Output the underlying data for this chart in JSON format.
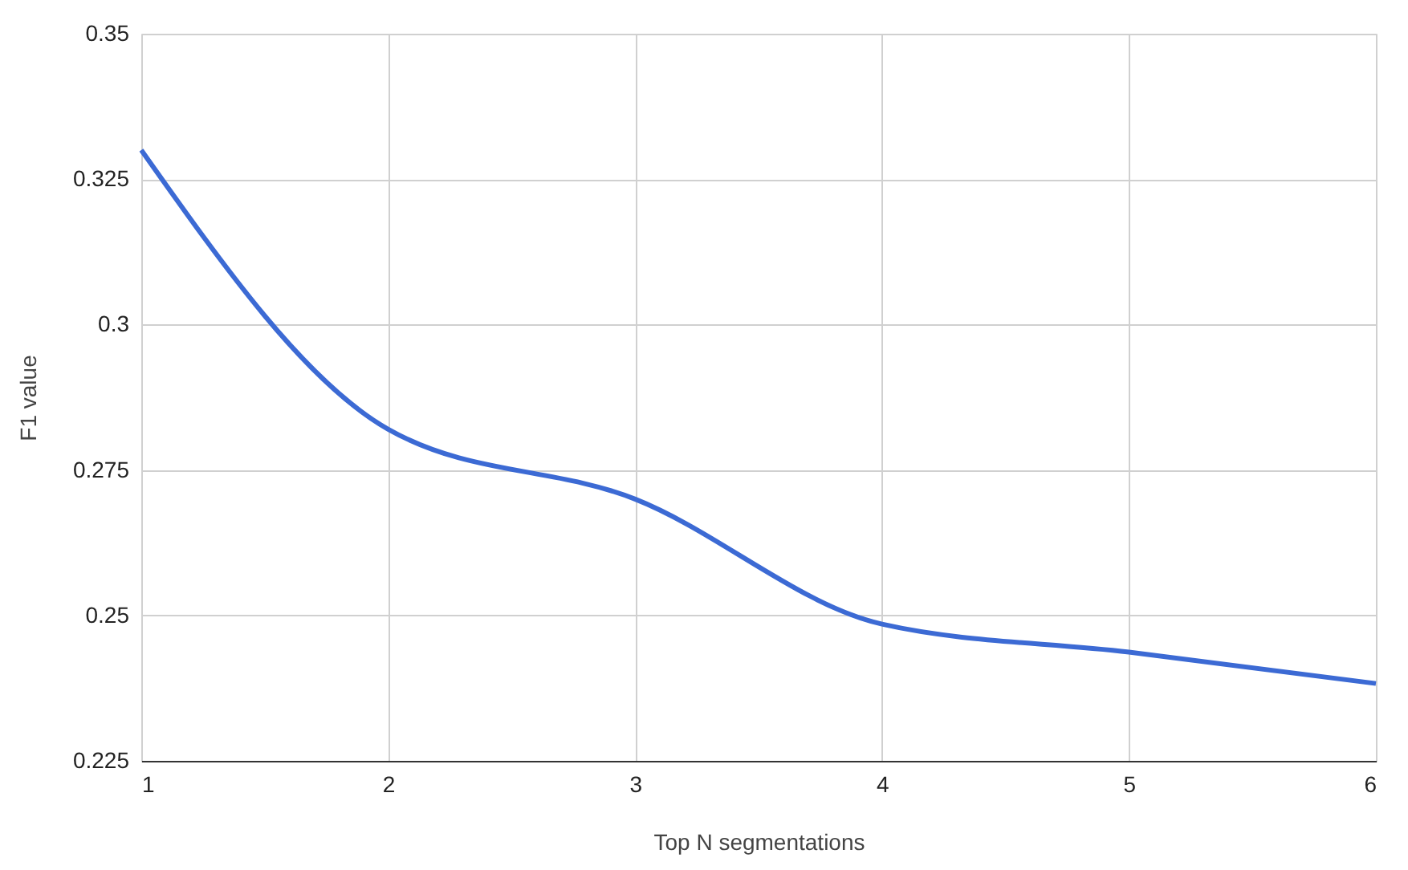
{
  "chart_data": {
    "type": "line",
    "xlabel": "Top N segmentations",
    "ylabel": "F1 value",
    "x": [
      1,
      2,
      3,
      4,
      5,
      6
    ],
    "series": [
      {
        "color": "#3c6ad4",
        "values": [
          0.33,
          0.282,
          0.27,
          0.2485,
          0.2437,
          0.2383
        ]
      }
    ],
    "xlim": [
      1,
      6
    ],
    "xticks": [
      1,
      2,
      3,
      4,
      5,
      6
    ],
    "ylim": [
      0.225,
      0.35
    ],
    "yticks": [
      0.225,
      0.25,
      0.275,
      0.3,
      0.325,
      0.35
    ],
    "grid": true,
    "marker": "none",
    "line_style": "solid"
  }
}
